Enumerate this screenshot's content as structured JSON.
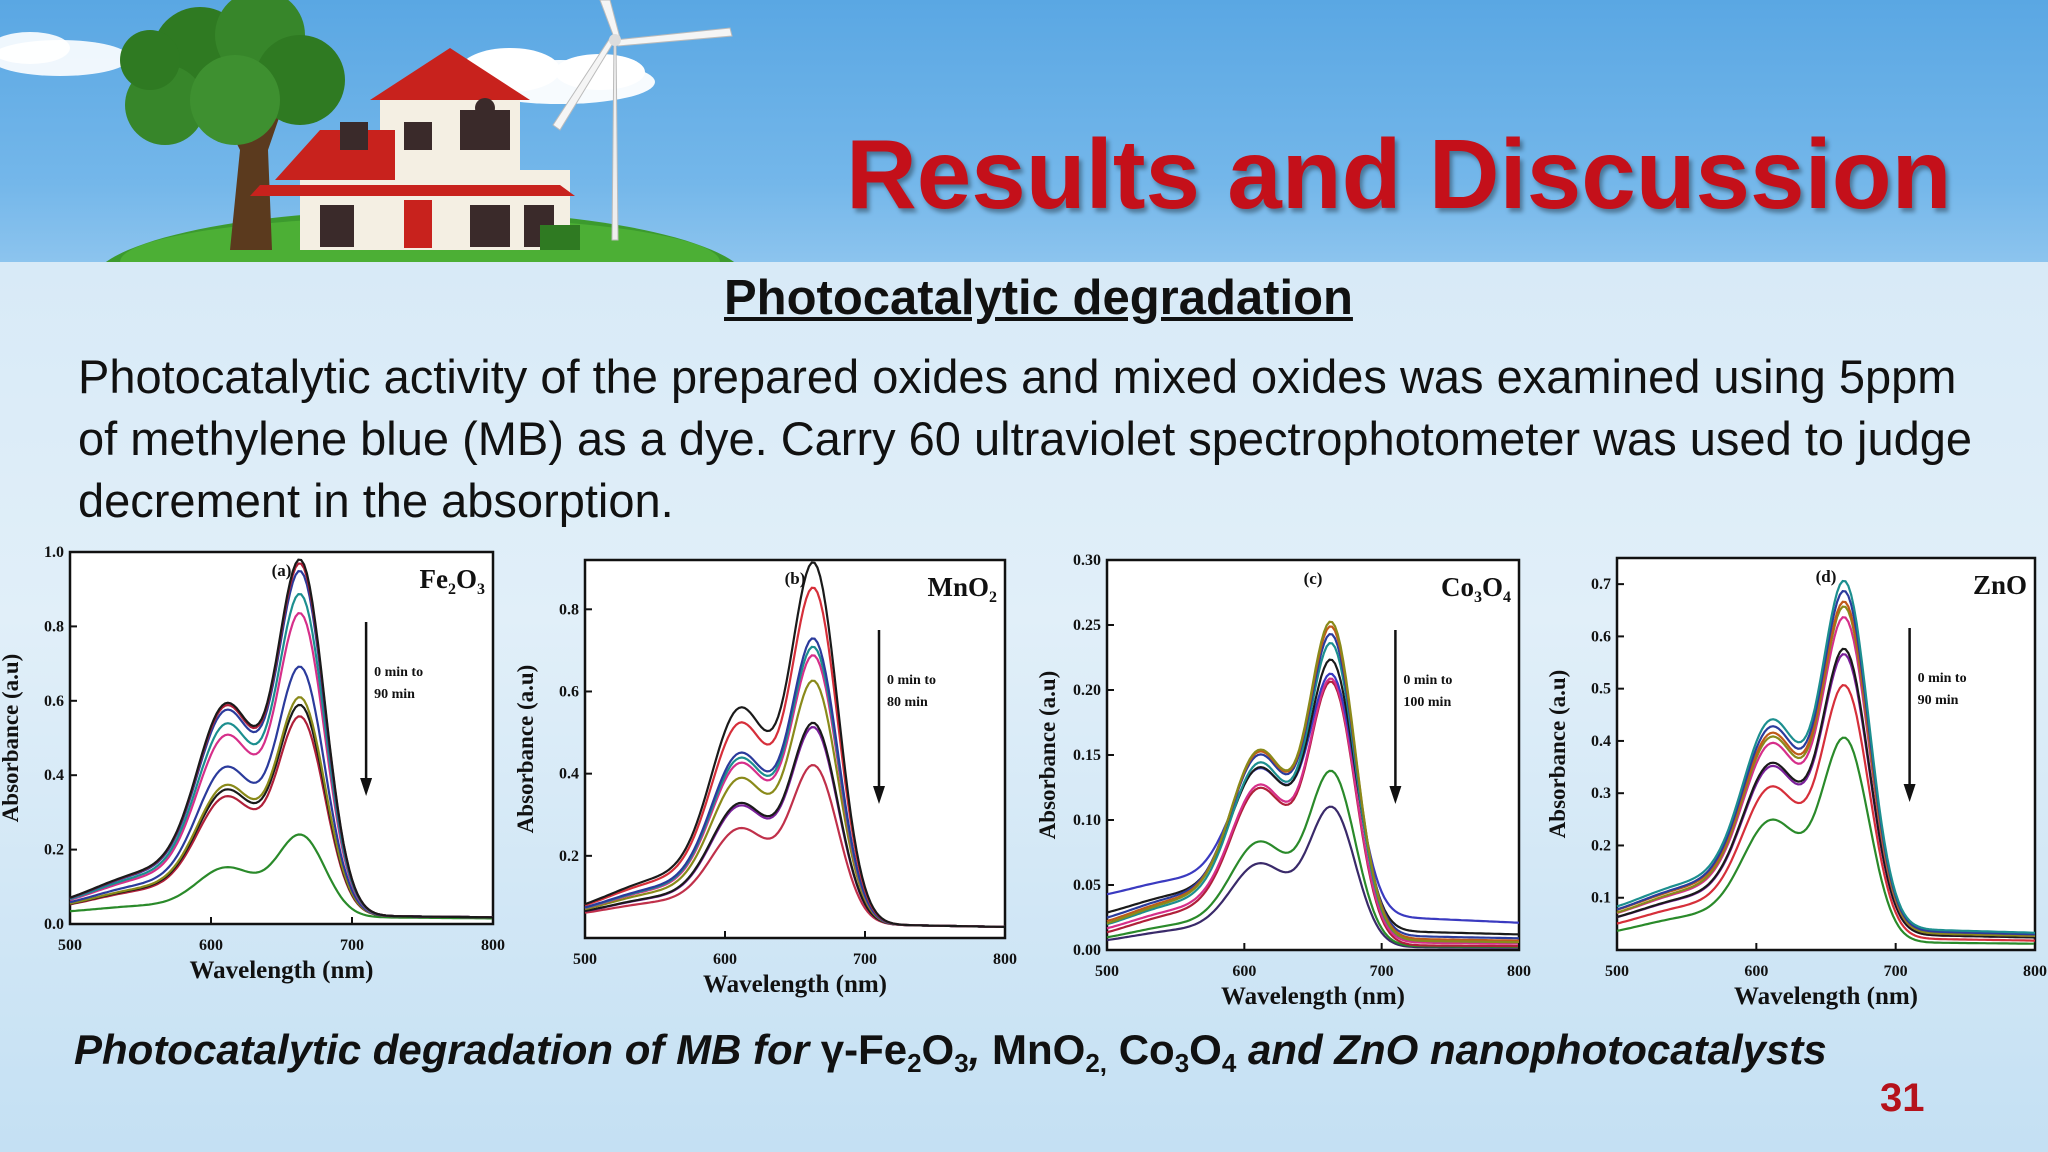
{
  "slide": {
    "title": "Results and Discussion",
    "section_heading": "Photocatalytic degradation",
    "intro": "Photocatalytic activity of the prepared oxides and mixed oxides was examined using 5ppm of methylene blue (MB) as a dye. Carry 60 ultraviolet spectrophotometer was used to judge decrement in the absorption.",
    "caption": {
      "prefix": "Photocatalytic degradation of MB for ",
      "gamma": "γ-Fe",
      "fe_sub1": "2",
      "o": "O",
      "fe_sub2": "3",
      "sep1": ", ",
      "mn": "MnO",
      "mn_sub": "2,",
      "co": " Co",
      "co_sub1": "3",
      "co_o": "O",
      "co_sub2": "4",
      "suffix": " and ZnO nanophotocatalysts"
    },
    "page_number": "31"
  },
  "colors": {
    "title": "#c4101a",
    "curves": [
      "#1a1a1a",
      "#b0203a",
      "#2b3b9c",
      "#7a1f9a",
      "#d62f8a",
      "#1c8f8f",
      "#8a8a1a",
      "#c05a1a",
      "#2a6a2a",
      "#5a2a6a"
    ]
  },
  "icons": [
    "house-icon",
    "tree-icon",
    "wind-turbine-icon",
    "cloud-icon",
    "hill-icon"
  ],
  "chart_data": [
    {
      "type": "line",
      "panel_label": "(a)",
      "material": "Fe",
      "material_sub1": "2",
      "material_mid": "O",
      "material_sub2": "3",
      "annotation_line1": "0 min to",
      "annotation_line2": "90 min",
      "xlabel": "Wavelength (nm)",
      "ylabel": "Absorbance (a.u)",
      "xlim": [
        500,
        800
      ],
      "ylim": [
        0,
        1.0
      ],
      "xticks": [
        "500",
        "600",
        "700",
        "800"
      ],
      "yticks": [
        "0.0",
        "0.2",
        "0.4",
        "0.6",
        "0.8",
        "1.0"
      ],
      "ytick_values": [
        0.0,
        0.2,
        0.4,
        0.6,
        0.8,
        1.0
      ],
      "series": [
        {
          "peak": 0.96,
          "baseline": 0.03,
          "color": "#1a1a1a"
        },
        {
          "peak": 0.95,
          "baseline": 0.03,
          "color": "#b0203a"
        },
        {
          "peak": 0.93,
          "baseline": 0.03,
          "color": "#2b3b9c"
        },
        {
          "peak": 0.87,
          "baseline": 0.03,
          "color": "#1c8f8f"
        },
        {
          "peak": 0.82,
          "baseline": 0.03,
          "color": "#d62f8a"
        },
        {
          "peak": 0.68,
          "baseline": 0.03,
          "color": "#2b3b9c"
        },
        {
          "peak": 0.6,
          "baseline": 0.03,
          "color": "#8a8a1a"
        },
        {
          "peak": 0.58,
          "baseline": 0.03,
          "color": "#1a1a1a"
        },
        {
          "peak": 0.55,
          "baseline": 0.03,
          "color": "#b0203a"
        },
        {
          "peak": 0.24,
          "baseline": 0.025,
          "color": "#2a8a2a"
        }
      ]
    },
    {
      "type": "line",
      "panel_label": "(b)",
      "material": "MnO",
      "material_sub1": "2",
      "material_mid": "",
      "material_sub2": "",
      "annotation_line1": "0 min to",
      "annotation_line2": "80 min",
      "xlabel": "Wavelength (nm)",
      "ylabel": "Absorbance (a.u)",
      "xlim": [
        500,
        800
      ],
      "ylim": [
        0,
        0.92
      ],
      "xticks": [
        "500",
        "600",
        "700",
        "800"
      ],
      "yticks": [
        "0.2",
        "0.4",
        "0.6",
        "0.8"
      ],
      "ytick_values": [
        0.2,
        0.4,
        0.6,
        0.8
      ],
      "series": [
        {
          "peak": 0.9,
          "baseline": 0.045,
          "color": "#1a1a1a"
        },
        {
          "peak": 0.84,
          "baseline": 0.045,
          "color": "#d62f3a"
        },
        {
          "peak": 0.72,
          "baseline": 0.045,
          "color": "#2b3b9c"
        },
        {
          "peak": 0.7,
          "baseline": 0.045,
          "color": "#1c8f8f"
        },
        {
          "peak": 0.68,
          "baseline": 0.045,
          "color": "#d62f8a"
        },
        {
          "peak": 0.62,
          "baseline": 0.045,
          "color": "#8a8a1a"
        },
        {
          "peak": 0.52,
          "baseline": 0.045,
          "color": "#1a1a1a"
        },
        {
          "peak": 0.51,
          "baseline": 0.045,
          "color": "#7a1f9a"
        },
        {
          "peak": 0.42,
          "baseline": 0.045,
          "color": "#c0304a"
        }
      ]
    },
    {
      "type": "line",
      "panel_label": "(c)",
      "material": "Co",
      "material_sub1": "3",
      "material_mid": "O",
      "material_sub2": "4",
      "annotation_line1": "0 min to",
      "annotation_line2": "100 min",
      "xlabel": "Wavelength (nm)",
      "ylabel": "Absorbance (a.u)",
      "xlim": [
        500,
        800
      ],
      "ylim": [
        0,
        0.3
      ],
      "xticks": [
        "500",
        "600",
        "700",
        "800"
      ],
      "yticks": [
        "0.00",
        "0.05",
        "0.10",
        "0.15",
        "0.20",
        "0.25",
        "0.30"
      ],
      "ytick_values": [
        0.0,
        0.05,
        0.1,
        0.15,
        0.2,
        0.25,
        0.3
      ],
      "series": [
        {
          "peak": 0.248,
          "baseline": 0.01,
          "color": "#8a8a1a"
        },
        {
          "peak": 0.245,
          "baseline": 0.012,
          "color": "#c05a1a"
        },
        {
          "peak": 0.24,
          "baseline": 0.015,
          "color": "#2b3b9c"
        },
        {
          "peak": 0.232,
          "baseline": 0.01,
          "color": "#1c8f8f"
        },
        {
          "peak": 0.222,
          "baseline": 0.02,
          "color": "#1a1a1a"
        },
        {
          "peak": 0.215,
          "baseline": 0.035,
          "color": "#3a3ac0"
        },
        {
          "peak": 0.205,
          "baseline": 0.008,
          "color": "#d62f8a"
        },
        {
          "peak": 0.202,
          "baseline": 0.005,
          "color": "#b0203a"
        },
        {
          "peak": 0.135,
          "baseline": 0.004,
          "color": "#2a8a2a"
        },
        {
          "peak": 0.108,
          "baseline": 0.003,
          "color": "#3a2a6a"
        }
      ]
    },
    {
      "type": "line",
      "panel_label": "(d)",
      "material": "ZnO",
      "material_sub1": "",
      "material_mid": "",
      "material_sub2": "",
      "annotation_line1": "0 min to",
      "annotation_line2": "90 min",
      "xlabel": "Wavelength (nm)",
      "ylabel": "Absorbance (a.u)",
      "xlim": [
        500,
        800
      ],
      "ylim": [
        0,
        0.75
      ],
      "xticks": [
        "500",
        "600",
        "700",
        "800"
      ],
      "yticks": [
        "0.1",
        "0.2",
        "0.3",
        "0.4",
        "0.5",
        "0.6",
        "0.7"
      ],
      "ytick_values": [
        0.1,
        0.2,
        0.3,
        0.4,
        0.5,
        0.6,
        0.7
      ],
      "series": [
        {
          "peak": 0.7,
          "baseline": 0.055,
          "color": "#1c8f8f"
        },
        {
          "peak": 0.68,
          "baseline": 0.05,
          "color": "#2b3b9c"
        },
        {
          "peak": 0.66,
          "baseline": 0.05,
          "color": "#c05a1a"
        },
        {
          "peak": 0.65,
          "baseline": 0.045,
          "color": "#8a8a1a"
        },
        {
          "peak": 0.63,
          "baseline": 0.045,
          "color": "#d62f8a"
        },
        {
          "peak": 0.57,
          "baseline": 0.04,
          "color": "#1a1a1a"
        },
        {
          "peak": 0.56,
          "baseline": 0.04,
          "color": "#7a1f9a"
        },
        {
          "peak": 0.5,
          "baseline": 0.03,
          "color": "#d62f3a"
        },
        {
          "peak": 0.4,
          "baseline": 0.02,
          "color": "#2a8a2a"
        }
      ]
    }
  ]
}
